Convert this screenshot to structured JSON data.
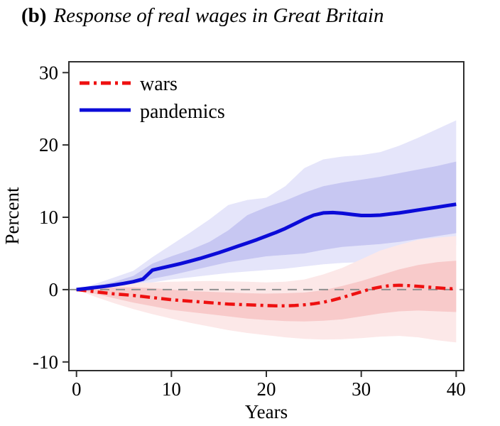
{
  "title": {
    "prefix": "(b)",
    "text": "Response of real wages in Great Britain"
  },
  "axes": {
    "ylabel": "Percent",
    "xlabel": "Years",
    "xticks": [
      0,
      10,
      20,
      30,
      40
    ],
    "yticks": [
      30,
      20,
      10,
      0,
      -10
    ],
    "xtick_labels": [
      "0",
      "10",
      "20",
      "30",
      "40"
    ],
    "ytick_labels": [
      "30",
      "20",
      "10",
      "0",
      "-10"
    ]
  },
  "colors": {
    "wars_line": "#ee1010",
    "pandemics_line": "#0b0bd8",
    "zero_line": "#8f8f8f",
    "axis": "#2f2f2f"
  },
  "chart_data": {
    "type": "line",
    "title": "(b) Response of real wages in Great Britain",
    "xlabel": "Years",
    "ylabel": "Percent",
    "xlim": [
      -0.8,
      40.8
    ],
    "ylim": [
      -11.2,
      31.5
    ],
    "zero_reference_line": true,
    "legend_position": "top-left-inside",
    "x": [
      0,
      1,
      2,
      3,
      4,
      5,
      6,
      7,
      8,
      9,
      10,
      11,
      12,
      13,
      14,
      15,
      16,
      17,
      18,
      19,
      20,
      21,
      22,
      23,
      24,
      25,
      26,
      27,
      28,
      29,
      30,
      31,
      32,
      33,
      34,
      35,
      36,
      37,
      38,
      39,
      40
    ],
    "band_x": [
      0,
      2,
      4,
      6,
      8,
      10,
      12,
      14,
      16,
      18,
      20,
      22,
      24,
      26,
      28,
      30,
      32,
      34,
      36,
      38,
      40
    ],
    "series": [
      {
        "name": "wars",
        "color": "#ee1010",
        "line_style": "dash-dot",
        "inner_band_color": "#f8caca",
        "outer_band_color": "#fce8e8",
        "values": [
          0,
          -0.15,
          -0.3,
          -0.45,
          -0.6,
          -0.7,
          -0.8,
          -0.95,
          -1.1,
          -1.25,
          -1.4,
          -1.5,
          -1.6,
          -1.7,
          -1.8,
          -1.9,
          -2.0,
          -2.05,
          -2.1,
          -2.15,
          -2.2,
          -2.25,
          -2.25,
          -2.2,
          -2.1,
          -1.95,
          -1.75,
          -1.45,
          -1.1,
          -0.7,
          -0.3,
          0.1,
          0.35,
          0.55,
          0.6,
          0.55,
          0.45,
          0.35,
          0.25,
          0.15,
          0.1
        ],
        "inner_band_top": [
          0,
          0.2,
          0.3,
          0.3,
          0.2,
          0.0,
          -0.2,
          -0.3,
          -0.4,
          -0.5,
          -0.55,
          -0.5,
          -0.4,
          -0.1,
          0.5,
          1.2,
          2.0,
          2.8,
          3.4,
          3.8,
          4.0
        ],
        "inner_band_bottom": [
          0,
          -0.6,
          -1.2,
          -1.8,
          -2.3,
          -2.8,
          -3.1,
          -3.4,
          -3.7,
          -4.0,
          -4.2,
          -4.35,
          -4.4,
          -4.3,
          -4.1,
          -3.7,
          -3.3,
          -3.0,
          -2.9,
          -3.0,
          -3.1
        ],
        "outer_band_top": [
          0,
          0.4,
          0.7,
          0.9,
          1.0,
          1.1,
          1.15,
          1.2,
          1.15,
          1.1,
          1.0,
          1.1,
          1.4,
          2.1,
          3.0,
          4.2,
          5.4,
          6.2,
          6.9,
          7.2,
          7.4
        ],
        "outer_band_bottom": [
          0,
          -1.0,
          -1.9,
          -2.7,
          -3.4,
          -4.0,
          -4.6,
          -5.1,
          -5.6,
          -6.0,
          -6.3,
          -6.6,
          -6.8,
          -6.9,
          -6.85,
          -6.7,
          -6.5,
          -6.4,
          -6.6,
          -7.0,
          -7.3
        ]
      },
      {
        "name": "pandemics",
        "color": "#0b0bd8",
        "line_style": "solid",
        "inner_band_color": "#c7c7f2",
        "outer_band_color": "#e5e5fa",
        "values": [
          0,
          0.15,
          0.3,
          0.45,
          0.65,
          0.85,
          1.1,
          1.45,
          2.7,
          3.0,
          3.3,
          3.6,
          3.95,
          4.3,
          4.7,
          5.1,
          5.55,
          6.0,
          6.45,
          6.9,
          7.4,
          7.9,
          8.45,
          9.1,
          9.75,
          10.3,
          10.6,
          10.65,
          10.55,
          10.4,
          10.25,
          10.25,
          10.3,
          10.45,
          10.6,
          10.8,
          11.0,
          11.2,
          11.4,
          11.6,
          11.8
        ],
        "inner_band_top": [
          0,
          0.5,
          1.1,
          1.9,
          3.6,
          4.6,
          5.5,
          6.6,
          8.2,
          10.3,
          11.4,
          12.3,
          13.4,
          14.3,
          14.8,
          15.2,
          15.6,
          16.1,
          16.6,
          17.1,
          17.7
        ],
        "inner_band_bottom": [
          0,
          0.2,
          0.4,
          0.7,
          1.5,
          2.0,
          2.6,
          3.2,
          3.8,
          4.2,
          4.6,
          4.8,
          5.0,
          5.5,
          5.9,
          6.1,
          6.3,
          6.6,
          7.0,
          7.4,
          7.8
        ],
        "outer_band_top": [
          0,
          0.8,
          1.7,
          2.6,
          4.5,
          6.2,
          7.9,
          9.7,
          11.7,
          12.4,
          12.7,
          14.3,
          16.8,
          18.0,
          18.4,
          18.6,
          19.0,
          19.9,
          21.0,
          22.2,
          23.4
        ],
        "outer_band_bottom": [
          0,
          -0.3,
          -0.2,
          0.1,
          1.0,
          1.4,
          1.7,
          2.0,
          2.3,
          2.5,
          2.7,
          2.9,
          3.2,
          3.5,
          3.7,
          3.8,
          4.0,
          4.3,
          4.8,
          5.4,
          6.1
        ]
      }
    ]
  }
}
